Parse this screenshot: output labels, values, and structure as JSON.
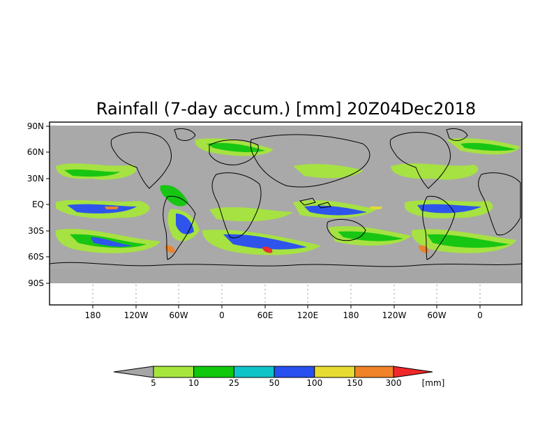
{
  "map": {
    "title": "Rainfall (7-day accum.) [mm] 20Z04Dec2018",
    "lat_labels": [
      "90N",
      "60N",
      "30N",
      "EQ",
      "30S",
      "60S",
      "90S"
    ],
    "lon_labels": [
      "180",
      "120W",
      "60W",
      "0",
      "60E",
      "120E",
      "180",
      "120W",
      "60W",
      "0"
    ],
    "background_color": "#a9a9a9",
    "landmask_color": "#a6a6a6"
  },
  "colorbar": {
    "unit_label": "[mm]",
    "boundaries": [
      "5",
      "10",
      "25",
      "50",
      "100",
      "150",
      "300"
    ],
    "colors": {
      "below_5": "#a6a6a6",
      "5_10": "#a6e63c",
      "10_25": "#10c80c",
      "25_50": "#0fc4c8",
      "50_100": "#2850f0",
      "100_150": "#e6dc32",
      "150_300": "#f08228",
      "above_300": "#f0282a"
    }
  }
}
